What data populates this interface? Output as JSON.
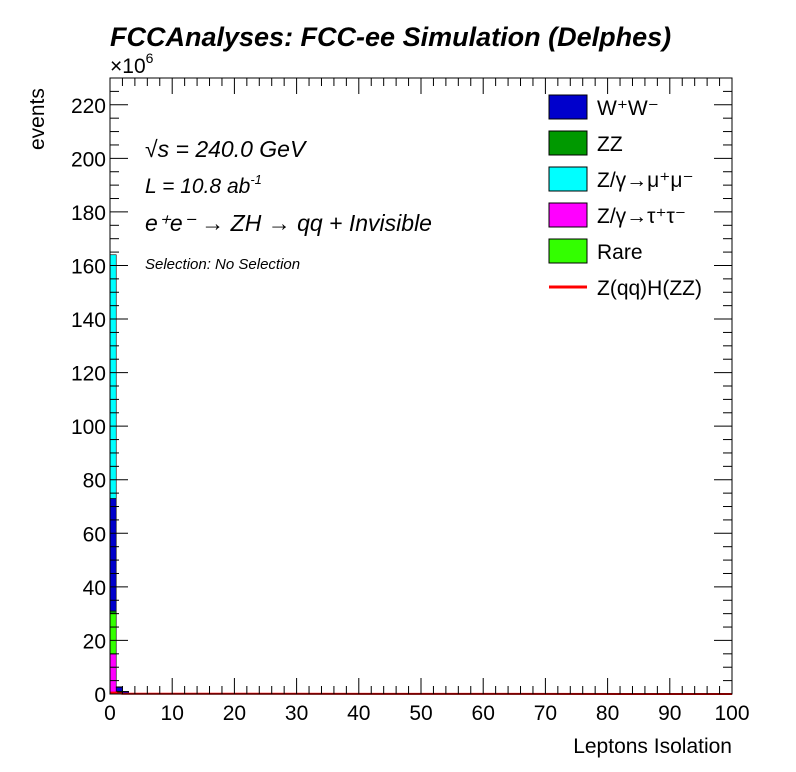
{
  "chart_data": {
    "type": "bar",
    "stacked": true,
    "title": "FCCAnalyses: FCC-ee Simulation (Delphes)",
    "xlabel": "Leptons Isolation",
    "ylabel": "events",
    "y_multiplier": "×10",
    "y_multiplier_exp": "6",
    "xlim": [
      0,
      100
    ],
    "ylim": [
      0,
      230
    ],
    "x_ticks": [
      "0",
      "10",
      "20",
      "30",
      "40",
      "50",
      "60",
      "70",
      "80",
      "90",
      "100"
    ],
    "y_ticks": [
      "0",
      "20",
      "40",
      "60",
      "80",
      "100",
      "120",
      "140",
      "160",
      "180",
      "200",
      "220"
    ],
    "bin_width": 1,
    "annotations": {
      "sqrt_s_sym": "√s",
      "sqrt_s_val": " = 240.0 GeV",
      "lumi": "L = 10.8 ab",
      "lumi_exp": "-1",
      "process": "e⁺e⁻ → ZH → qq + Invisible",
      "selection": "Selection: No Selection"
    },
    "series": [
      {
        "name": "Z/γ→τ⁺τ⁻",
        "color": "#ff00ff",
        "values": [
          15,
          0.4,
          0.1
        ]
      },
      {
        "name": "Rare",
        "color": "#33ff00",
        "values": [
          15,
          0.3,
          0.1
        ]
      },
      {
        "name": "ZZ",
        "color": "#009900",
        "values": [
          1,
          0.3,
          0.1
        ]
      },
      {
        "name": "W⁺W⁻",
        "color": "#0000cc",
        "values": [
          42,
          1.5,
          0.6
        ]
      },
      {
        "name": "Z/γ→μ⁺μ⁻",
        "color": "#00ffff",
        "values": [
          91,
          0.2,
          0.1
        ]
      }
    ],
    "signal": {
      "name": "Z(qq)H(ZZ)",
      "color": "#ff0000",
      "values": [
        0.5,
        0.2,
        0.1
      ]
    },
    "legend": {
      "position": "top-right",
      "entries": [
        {
          "label": "W⁺W⁻",
          "color": "#0000cc",
          "kind": "box"
        },
        {
          "label": "ZZ",
          "color": "#009900",
          "kind": "box"
        },
        {
          "label": "Z/γ→μ⁺μ⁻",
          "color": "#00ffff",
          "kind": "box"
        },
        {
          "label": "Z/γ→τ⁺τ⁻",
          "color": "#ff00ff",
          "kind": "box"
        },
        {
          "label": "Rare",
          "color": "#33ff00",
          "kind": "box"
        },
        {
          "label": "Z(qq)H(ZZ)",
          "color": "#ff0000",
          "kind": "line"
        }
      ]
    },
    "grid": false
  }
}
